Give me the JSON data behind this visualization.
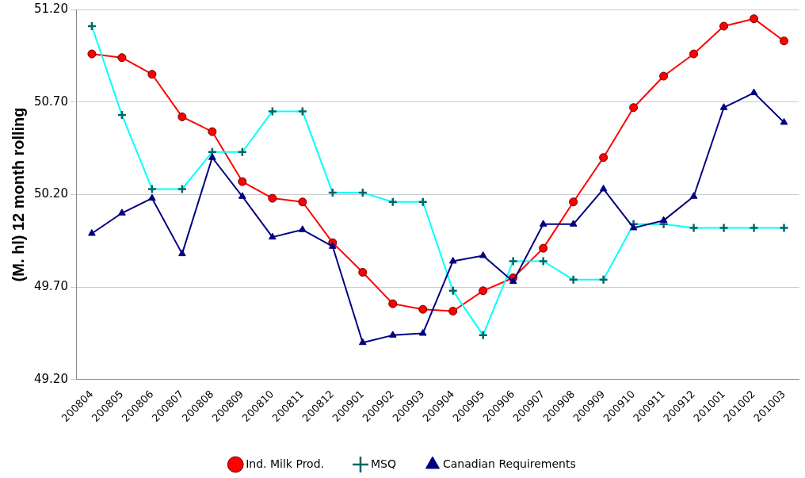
{
  "chart_data": {
    "type": "line",
    "ylabel": "(M. hl) 12 month rolling",
    "categories": [
      "200804",
      "200805",
      "200806",
      "200807",
      "200808",
      "200809",
      "200810",
      "200811",
      "200812",
      "200901",
      "200902",
      "200903",
      "200904",
      "200905",
      "200906",
      "200907",
      "200908",
      "200909",
      "200910",
      "200911",
      "200912",
      "201001",
      "201002",
      "201003"
    ],
    "series": [
      {
        "name": "Ind. Milk Prod.",
        "color": "#ff0000",
        "marker": "circle",
        "values": [
          50.96,
          50.94,
          50.85,
          50.62,
          50.54,
          50.27,
          50.18,
          50.16,
          49.94,
          49.78,
          49.61,
          49.58,
          49.57,
          49.68,
          49.75,
          49.91,
          50.16,
          50.4,
          50.67,
          50.84,
          50.96,
          51.11,
          51.15,
          51.03
        ]
      },
      {
        "name": "MSQ",
        "color": "#00ffff",
        "marker": "cross",
        "values": [
          51.11,
          50.63,
          50.23,
          50.23,
          50.43,
          50.43,
          50.65,
          50.65,
          50.21,
          50.21,
          50.16,
          50.16,
          49.68,
          49.44,
          49.84,
          49.84,
          49.74,
          49.74,
          50.04,
          50.04,
          50.02,
          50.02,
          50.02,
          50.02
        ]
      },
      {
        "name": "Canadian Requirements",
        "color": "#000080",
        "marker": "triangle",
        "values": [
          49.99,
          50.1,
          50.18,
          49.88,
          50.4,
          50.19,
          49.97,
          50.01,
          49.92,
          49.4,
          49.44,
          49.45,
          49.84,
          49.87,
          49.73,
          50.04,
          50.04,
          50.23,
          50.02,
          50.06,
          50.19,
          50.67,
          50.75,
          50.59
        ]
      }
    ],
    "ylim": [
      49.2,
      51.2
    ],
    "yticks": [
      {
        "value": 49.2,
        "label": "49.20"
      },
      {
        "value": 49.7,
        "label": "49.70"
      },
      {
        "value": 50.2,
        "label": "50.20"
      },
      {
        "value": 50.7,
        "label": "50.70"
      },
      {
        "value": 51.2,
        "label": "51.20"
      }
    ],
    "grid": "y",
    "legend": "bottom"
  }
}
